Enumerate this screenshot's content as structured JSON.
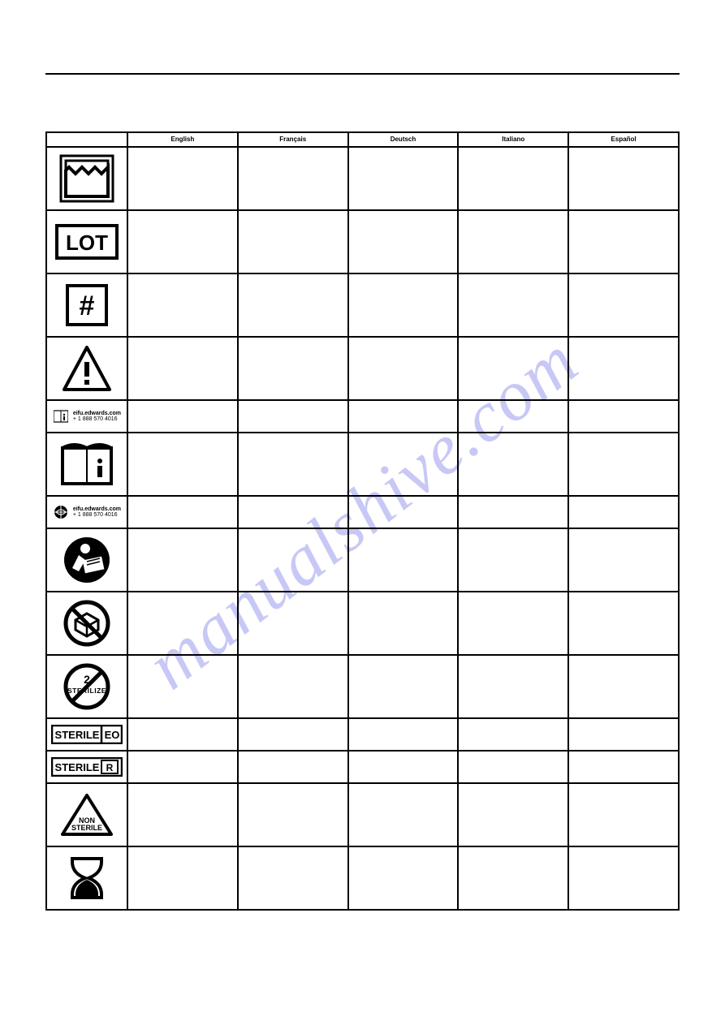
{
  "watermark": "manualshive.com",
  "headers": [
    "",
    "English",
    "Français",
    "Deutsch",
    "Italiano",
    "Español"
  ],
  "eifu_url": "eifu.edwards.com",
  "eifu_phone": "+ 1 888 570 4016",
  "rows": [
    {
      "icon": "manufacturer",
      "height": "tall",
      "cells": [
        "",
        "",
        "",
        "",
        ""
      ]
    },
    {
      "icon": "lot",
      "height": "tall",
      "cells": [
        "",
        "",
        "",
        "",
        ""
      ]
    },
    {
      "icon": "model",
      "height": "tall",
      "cells": [
        "",
        "",
        "",
        "",
        ""
      ]
    },
    {
      "icon": "caution",
      "height": "tall",
      "cells": [
        "",
        "",
        "",
        "",
        ""
      ]
    },
    {
      "icon": "eifu-card",
      "height": "short",
      "cells": [
        "",
        "",
        "",
        "",
        ""
      ]
    },
    {
      "icon": "consult-ifu",
      "height": "tall",
      "cells": [
        "",
        "",
        "",
        "",
        ""
      ]
    },
    {
      "icon": "eifu-globe",
      "height": "short",
      "cells": [
        "",
        "",
        "",
        "",
        ""
      ]
    },
    {
      "icon": "follow-ifu",
      "height": "tall",
      "cells": [
        "",
        "",
        "",
        "",
        ""
      ]
    },
    {
      "icon": "no-reuse-pkg",
      "height": "tall",
      "cells": [
        "",
        "",
        "",
        "",
        ""
      ]
    },
    {
      "icon": "no-resterilize",
      "height": "tall",
      "cells": [
        "",
        "",
        "",
        "",
        ""
      ]
    },
    {
      "icon": "sterile-eo",
      "height": "short",
      "cells": [
        "",
        "",
        "",
        "",
        ""
      ]
    },
    {
      "icon": "sterile-r",
      "height": "short",
      "cells": [
        "",
        "",
        "",
        "",
        ""
      ]
    },
    {
      "icon": "non-sterile",
      "height": "tall",
      "cells": [
        "",
        "",
        "",
        "",
        ""
      ]
    },
    {
      "icon": "use-by",
      "height": "tall",
      "cells": [
        "",
        "",
        "",
        "",
        ""
      ]
    }
  ],
  "colors": {
    "border": "#000000",
    "watermark": "#9c9cf0",
    "bg": "#ffffff"
  }
}
